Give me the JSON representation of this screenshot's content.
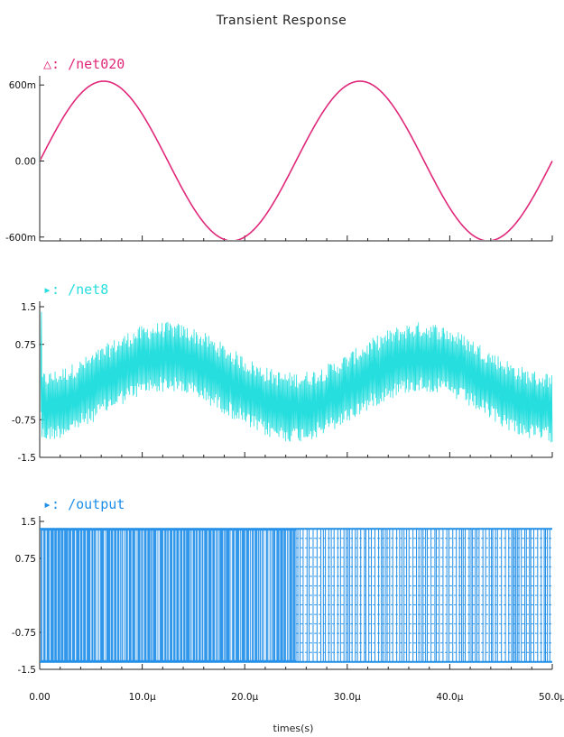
{
  "title": "Transient Response",
  "xlabel": "times(s)",
  "x_ticks": [
    "0.00",
    "10.0µ",
    "20.0µ",
    "30.0µ",
    "40.0µ",
    "50.0µ"
  ],
  "chart_data": [
    {
      "type": "line",
      "series": [
        {
          "name": "/net020",
          "color": "#e0287a"
        }
      ],
      "marker": "△:",
      "xlim": [
        0,
        50
      ],
      "x_units": "µs",
      "ylim": [
        -0.63,
        0.63
      ],
      "y_ticks": [
        "600m",
        "0.00",
        "-600m"
      ],
      "y_tick_values": [
        0.6,
        0.0,
        -0.6
      ],
      "signal": {
        "shape": "sine",
        "amplitude": 0.63,
        "period_us": 25,
        "offset": 0
      }
    },
    {
      "type": "line",
      "series": [
        {
          "name": "/net8",
          "color": "#27dede"
        }
      ],
      "marker": "▸:",
      "xlim": [
        0,
        50
      ],
      "x_units": "µs",
      "ylim": [
        -1.5,
        1.5
      ],
      "y_ticks": [
        "1.5",
        "0.75",
        "-0.75",
        "-1.5"
      ],
      "y_tick_values": [
        1.5,
        0.75,
        -0.75,
        -1.5
      ],
      "signal": {
        "shape": "noisy sine",
        "amplitude": 0.5,
        "period_us": 25,
        "offset": 0,
        "noise_peak_to_peak": 1.4
      }
    },
    {
      "type": "line",
      "series": [
        {
          "name": "/output",
          "color": "#1f8ee8"
        }
      ],
      "marker": "▸:",
      "xlim": [
        0,
        50
      ],
      "x_units": "µs",
      "ylim": [
        -1.5,
        1.5
      ],
      "y_ticks": [
        "1.5",
        "0.75",
        "-0.75",
        "-1.5"
      ],
      "y_tick_values": [
        1.5,
        0.75,
        -0.75,
        -1.5
      ],
      "signal": {
        "shape": "square toggling",
        "high": 1.35,
        "low": -1.35,
        "dense_until_us": 25
      }
    }
  ]
}
